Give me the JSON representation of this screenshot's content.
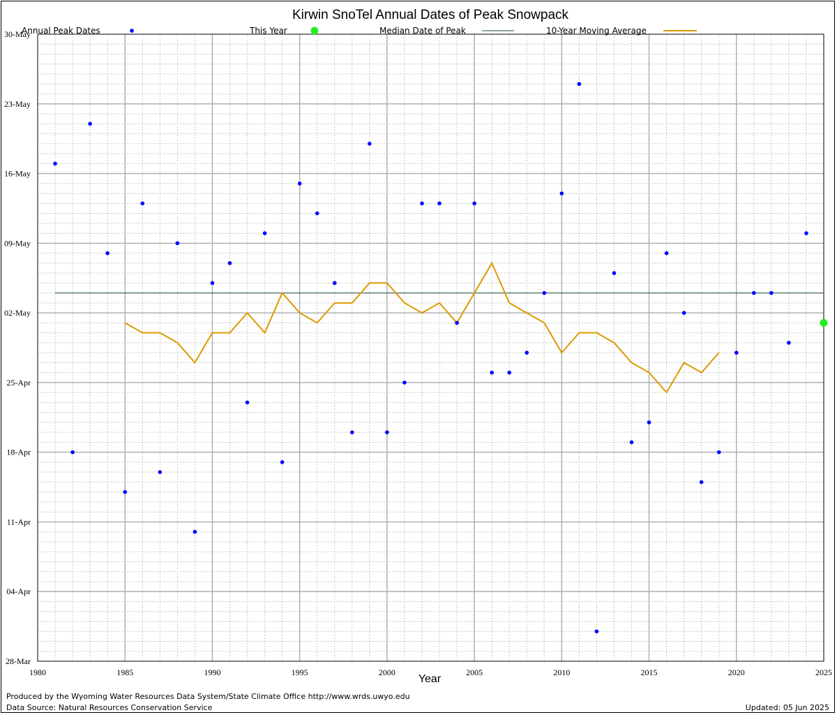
{
  "chart_data": {
    "type": "scatter",
    "title": "Kirwin SnoTel Annual Dates of Peak Snowpack",
    "xlabel": "Year",
    "ylabel": "",
    "xlim": [
      1980,
      2025
    ],
    "ylim": [
      "28-Mar",
      "30-May"
    ],
    "x_ticks": [
      "1980",
      "1985",
      "1990",
      "1995",
      "2000",
      "2005",
      "2010",
      "2015",
      "2020",
      "2025"
    ],
    "y_ticks": [
      "28-Mar",
      "04-Apr",
      "11-Apr",
      "18-Apr",
      "25-Apr",
      "02-May",
      "09-May",
      "16-May",
      "23-May",
      "30-May"
    ],
    "grid": true,
    "legend_position": "top",
    "colors": {
      "annual": "#0000ff",
      "this_year": "#22ee22",
      "median": "#1a4a3a",
      "moving_average": "#dd9900",
      "grid_major": "#b0b0b0",
      "grid_minor": "#c8c8c8"
    },
    "legend": {
      "annual": "Annual Peak Dates",
      "this_year": "This Year",
      "median": "Median Date of Peak",
      "moving_average": "10-Year Moving Average"
    },
    "series": [
      {
        "name": "Annual Peak Dates",
        "points": [
          {
            "x": 1981,
            "y": "17-May"
          },
          {
            "x": 1982,
            "y": "18-Apr"
          },
          {
            "x": 1983,
            "y": "21-May"
          },
          {
            "x": 1984,
            "y": "08-May"
          },
          {
            "x": 1985,
            "y": "14-Apr"
          },
          {
            "x": 1986,
            "y": "13-May"
          },
          {
            "x": 1987,
            "y": "16-Apr"
          },
          {
            "x": 1988,
            "y": "09-May"
          },
          {
            "x": 1989,
            "y": "10-Apr"
          },
          {
            "x": 1990,
            "y": "05-May"
          },
          {
            "x": 1991,
            "y": "07-May"
          },
          {
            "x": 1992,
            "y": "23-Apr"
          },
          {
            "x": 1993,
            "y": "10-May"
          },
          {
            "x": 1994,
            "y": "17-Apr"
          },
          {
            "x": 1995,
            "y": "15-May"
          },
          {
            "x": 1996,
            "y": "12-May"
          },
          {
            "x": 1997,
            "y": "05-May"
          },
          {
            "x": 1998,
            "y": "20-Apr"
          },
          {
            "x": 1999,
            "y": "19-May"
          },
          {
            "x": 2000,
            "y": "20-Apr"
          },
          {
            "x": 2001,
            "y": "25-Apr"
          },
          {
            "x": 2002,
            "y": "13-May"
          },
          {
            "x": 2003,
            "y": "13-May"
          },
          {
            "x": 2004,
            "y": "01-May"
          },
          {
            "x": 2005,
            "y": "13-May"
          },
          {
            "x": 2006,
            "y": "26-Apr"
          },
          {
            "x": 2007,
            "y": "26-Apr"
          },
          {
            "x": 2008,
            "y": "28-Apr"
          },
          {
            "x": 2009,
            "y": "04-May"
          },
          {
            "x": 2010,
            "y": "14-May"
          },
          {
            "x": 2011,
            "y": "25-May"
          },
          {
            "x": 2012,
            "y": "31-Mar"
          },
          {
            "x": 2013,
            "y": "06-May"
          },
          {
            "x": 2014,
            "y": "19-Apr"
          },
          {
            "x": 2015,
            "y": "21-Apr"
          },
          {
            "x": 2016,
            "y": "08-May"
          },
          {
            "x": 2017,
            "y": "02-May"
          },
          {
            "x": 2018,
            "y": "15-Apr"
          },
          {
            "x": 2019,
            "y": "18-Apr"
          },
          {
            "x": 2020,
            "y": "28-Apr"
          },
          {
            "x": 2021,
            "y": "04-May"
          },
          {
            "x": 2022,
            "y": "04-May"
          },
          {
            "x": 2023,
            "y": "29-Apr"
          },
          {
            "x": 2024,
            "y": "10-May"
          }
        ]
      },
      {
        "name": "This Year",
        "points": [
          {
            "x": 2025,
            "y": "01-May"
          }
        ]
      },
      {
        "name": "Median Date of Peak",
        "points": [
          {
            "x": 1981,
            "y": "04-May"
          },
          {
            "x": 2025,
            "y": "04-May"
          }
        ]
      },
      {
        "name": "10-Year Moving Average",
        "points": [
          {
            "x": 1985,
            "y": "01-May"
          },
          {
            "x": 1986,
            "y": "30-Apr"
          },
          {
            "x": 1987,
            "y": "30-Apr"
          },
          {
            "x": 1988,
            "y": "29-Apr"
          },
          {
            "x": 1989,
            "y": "27-Apr"
          },
          {
            "x": 1990,
            "y": "30-Apr"
          },
          {
            "x": 1991,
            "y": "30-Apr"
          },
          {
            "x": 1992,
            "y": "02-May"
          },
          {
            "x": 1993,
            "y": "30-Apr"
          },
          {
            "x": 1994,
            "y": "04-May"
          },
          {
            "x": 1995,
            "y": "02-May"
          },
          {
            "x": 1996,
            "y": "01-May"
          },
          {
            "x": 1997,
            "y": "03-May"
          },
          {
            "x": 1998,
            "y": "03-May"
          },
          {
            "x": 1999,
            "y": "05-May"
          },
          {
            "x": 2000,
            "y": "05-May"
          },
          {
            "x": 2001,
            "y": "03-May"
          },
          {
            "x": 2002,
            "y": "02-May"
          },
          {
            "x": 2003,
            "y": "03-May"
          },
          {
            "x": 2004,
            "y": "01-May"
          },
          {
            "x": 2005,
            "y": "04-May"
          },
          {
            "x": 2006,
            "y": "07-May"
          },
          {
            "x": 2007,
            "y": "03-May"
          },
          {
            "x": 2008,
            "y": "02-May"
          },
          {
            "x": 2009,
            "y": "01-May"
          },
          {
            "x": 2010,
            "y": "28-Apr"
          },
          {
            "x": 2011,
            "y": "30-Apr"
          },
          {
            "x": 2012,
            "y": "30-Apr"
          },
          {
            "x": 2013,
            "y": "29-Apr"
          },
          {
            "x": 2014,
            "y": "27-Apr"
          },
          {
            "x": 2015,
            "y": "26-Apr"
          },
          {
            "x": 2016,
            "y": "24-Apr"
          },
          {
            "x": 2017,
            "y": "27-Apr"
          },
          {
            "x": 2018,
            "y": "26-Apr"
          },
          {
            "x": 2019,
            "y": "28-Apr"
          }
        ]
      }
    ]
  },
  "footer": {
    "produced_by": "Produced by the Wyoming Water Resources Data System/State Climate Office http://www.wrds.uwyo.edu",
    "source": "Data Source: Natural Resources Conservation Service",
    "updated": "Updated: 05 Jun 2025"
  }
}
